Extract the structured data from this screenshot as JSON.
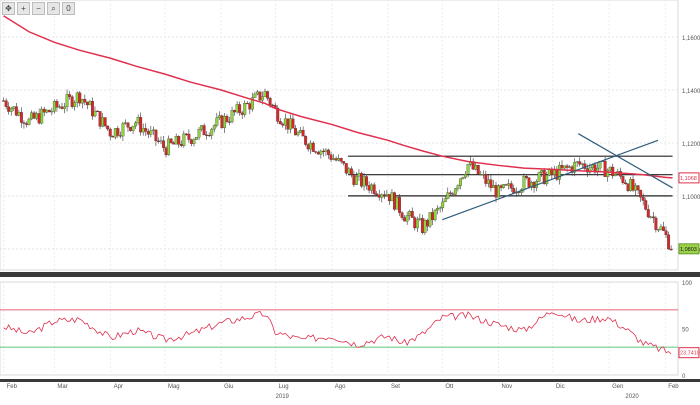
{
  "toolbar": {
    "icons": [
      "move-icon",
      "zoom-in-icon",
      "zoom-out-icon",
      "magnify-icon",
      "reset-icon"
    ],
    "glyphs": [
      "✥",
      "+",
      "−",
      "⌕",
      "0"
    ]
  },
  "chart_data": [
    {
      "type": "candlestick",
      "title": "",
      "ylim": [
        1.072,
        1.174
      ],
      "y_ticks": [
        "1,1600",
        "1,1400",
        "1,1200",
        "1,1000",
        "1,0800"
      ],
      "y_tick_values": [
        1.16,
        1.14,
        1.12,
        1.1,
        1.08
      ],
      "grid": true,
      "x": [
        "2019-02-01",
        "2019-02-15",
        "2019-03-01",
        "2019-03-15",
        "2019-04-01",
        "2019-04-15",
        "2019-05-01",
        "2019-05-15",
        "2019-06-01",
        "2019-06-15",
        "2019-06-25",
        "2019-07-01",
        "2019-07-15",
        "2019-08-01",
        "2019-08-15",
        "2019-09-01",
        "2019-09-10",
        "2019-09-20",
        "2019-10-01",
        "2019-10-15",
        "2019-11-01",
        "2019-11-15",
        "2019-12-01",
        "2019-12-15",
        "2019-12-31",
        "2020-01-10",
        "2020-01-20",
        "2020-02-01",
        "2020-02-05"
      ],
      "close": [
        1.136,
        1.128,
        1.133,
        1.138,
        1.124,
        1.128,
        1.118,
        1.122,
        1.128,
        1.134,
        1.139,
        1.132,
        1.122,
        1.115,
        1.106,
        1.101,
        1.093,
        1.088,
        1.096,
        1.112,
        1.101,
        1.105,
        1.108,
        1.112,
        1.11,
        1.106,
        1.097,
        1.085,
        1.08
      ],
      "series": [
        {
          "name": "",
          "kind": "moving-average",
          "color": "#e0304e",
          "y": [
            1.168,
            1.162,
            1.158,
            1.155,
            1.152,
            1.149,
            1.146,
            1.143,
            1.14,
            1.137,
            1.135,
            1.133,
            1.13,
            1.127,
            1.124,
            1.121,
            1.119,
            1.117,
            1.115,
            1.113,
            1.1115,
            1.1105,
            1.11,
            1.1095,
            1.109,
            1.1085,
            1.108,
            1.107,
            1.1068
          ]
        }
      ],
      "last_price_label": "1,0803",
      "ma_label": "1,1068",
      "horizontal_levels": [
        1.115,
        1.108,
        1.1
      ],
      "trendlines": [
        {
          "x": [
            "2019-10-01",
            "2020-01-28"
          ],
          "y": [
            1.091,
            1.121
          ]
        },
        {
          "x": [
            "2019-12-15",
            "2020-02-05"
          ],
          "y": [
            1.1235,
            1.103
          ]
        }
      ]
    },
    {
      "type": "line",
      "title": "",
      "ylim": [
        0,
        100
      ],
      "y_ticks": [
        "100",
        "50",
        "0"
      ],
      "y_tick_values": [
        100,
        50,
        0
      ],
      "levels": [
        70,
        30
      ],
      "level_colors": [
        "#e0304e",
        "#22b84a"
      ],
      "series": [
        {
          "name": "",
          "color": "#e0304e",
          "y": [
            52,
            44,
            58,
            60,
            40,
            48,
            38,
            44,
            56,
            62,
            66,
            46,
            38,
            42,
            33,
            42,
            34,
            44,
            62,
            64,
            54,
            48,
            70,
            58,
            62,
            50,
            34,
            26,
            24
          ]
        }
      ],
      "last_value_label": "23,7410"
    }
  ],
  "x_axis": {
    "months": [
      "Feb",
      "Mar",
      "Apr",
      "Mag",
      "Giu",
      "Lug",
      "Ago",
      "Set",
      "Ott",
      "Nov",
      "Dic",
      "Gen",
      "Feb"
    ],
    "years": [
      "2019",
      "2020"
    ]
  }
}
